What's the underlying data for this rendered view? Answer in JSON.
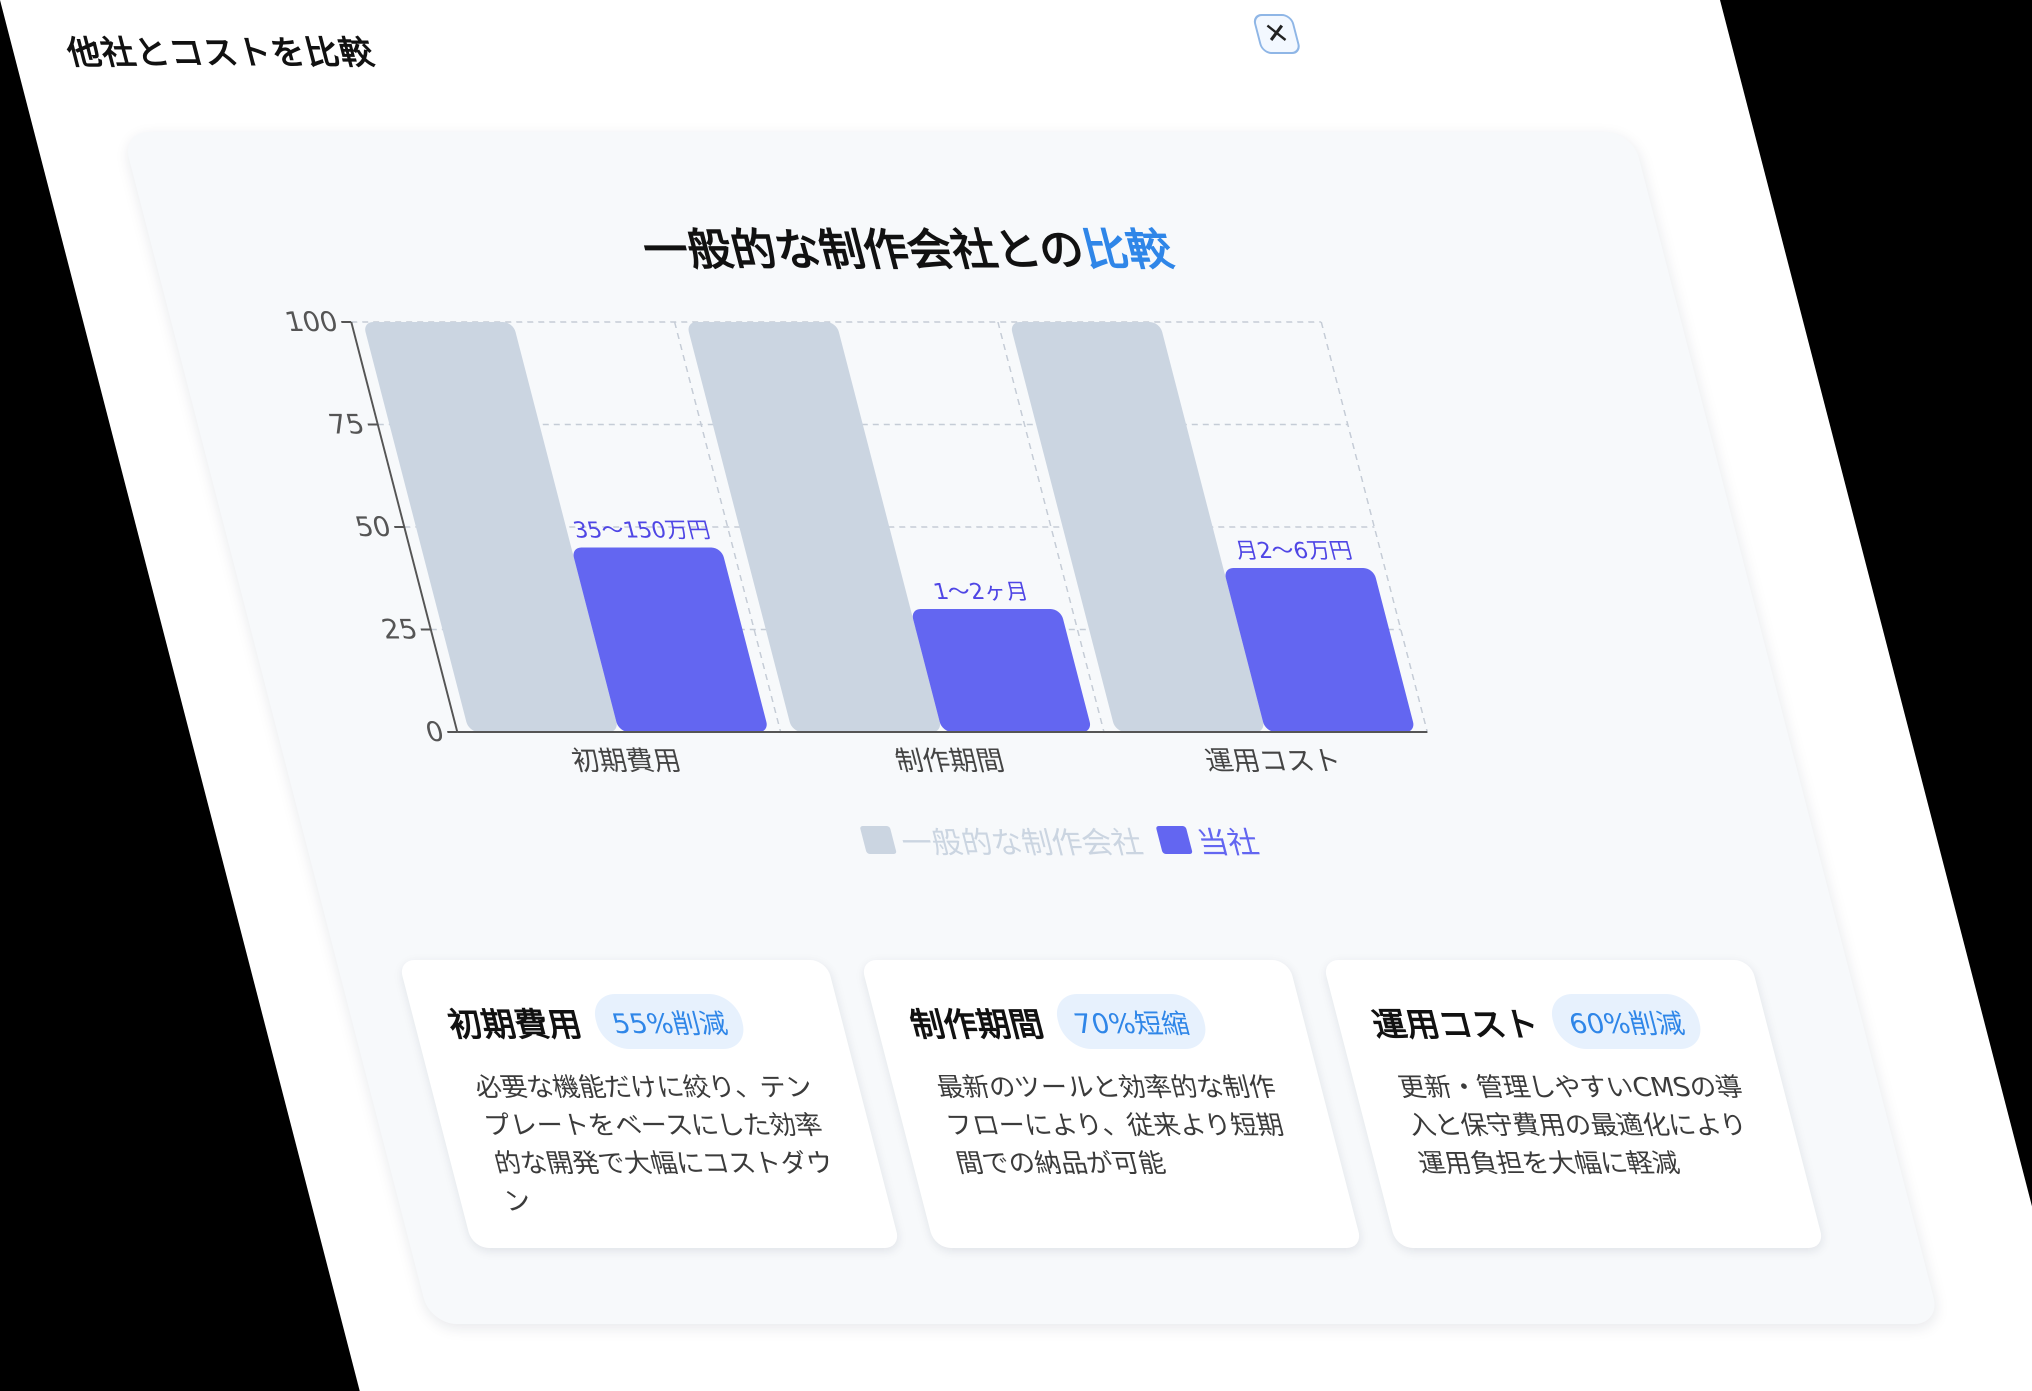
{
  "modal": {
    "title": "他社とコストを比較",
    "close_icon": "close-icon",
    "close_glyph": "✕"
  },
  "chart_heading": {
    "text": "一般的な制作会社との",
    "accent": "比較",
    "accent_color": "#2f86e8"
  },
  "chart_data": {
    "type": "bar",
    "title": "",
    "xlabel": "",
    "ylabel": "",
    "ylim": [
      0,
      100
    ],
    "yticks": [
      0,
      25,
      50,
      75,
      100
    ],
    "grid": true,
    "legend_position": "bottom",
    "categories": [
      "初期費用",
      "制作期間",
      "運用コスト"
    ],
    "series": [
      {
        "name": "一般的な制作会社",
        "color": "#cbd5e1",
        "label_color": "#cbd5e1",
        "values": [
          100,
          100,
          100
        ],
        "labels": []
      },
      {
        "name": "当社",
        "color": "#6366f1",
        "label_color": "#4f46e5",
        "values": [
          45,
          30,
          40
        ],
        "labels": [
          "35〜150万円",
          "1〜2ヶ月",
          "月2〜6万円"
        ]
      }
    ]
  },
  "cards": [
    {
      "title": "初期費用",
      "badge": "55%削減",
      "description": "必要な機能だけに絞り、テンプレートをベースにした効率的な開発で大幅にコストダウン"
    },
    {
      "title": "制作期間",
      "badge": "70%短縮",
      "description": "最新のツールと効率的な制作フローにより、従来より短期間での納品が可能"
    },
    {
      "title": "運用コスト",
      "badge": "60%削減",
      "description": "更新・管理しやすいCMSの導入と保守費用の最適化により運用負担を大幅に軽減"
    }
  ]
}
